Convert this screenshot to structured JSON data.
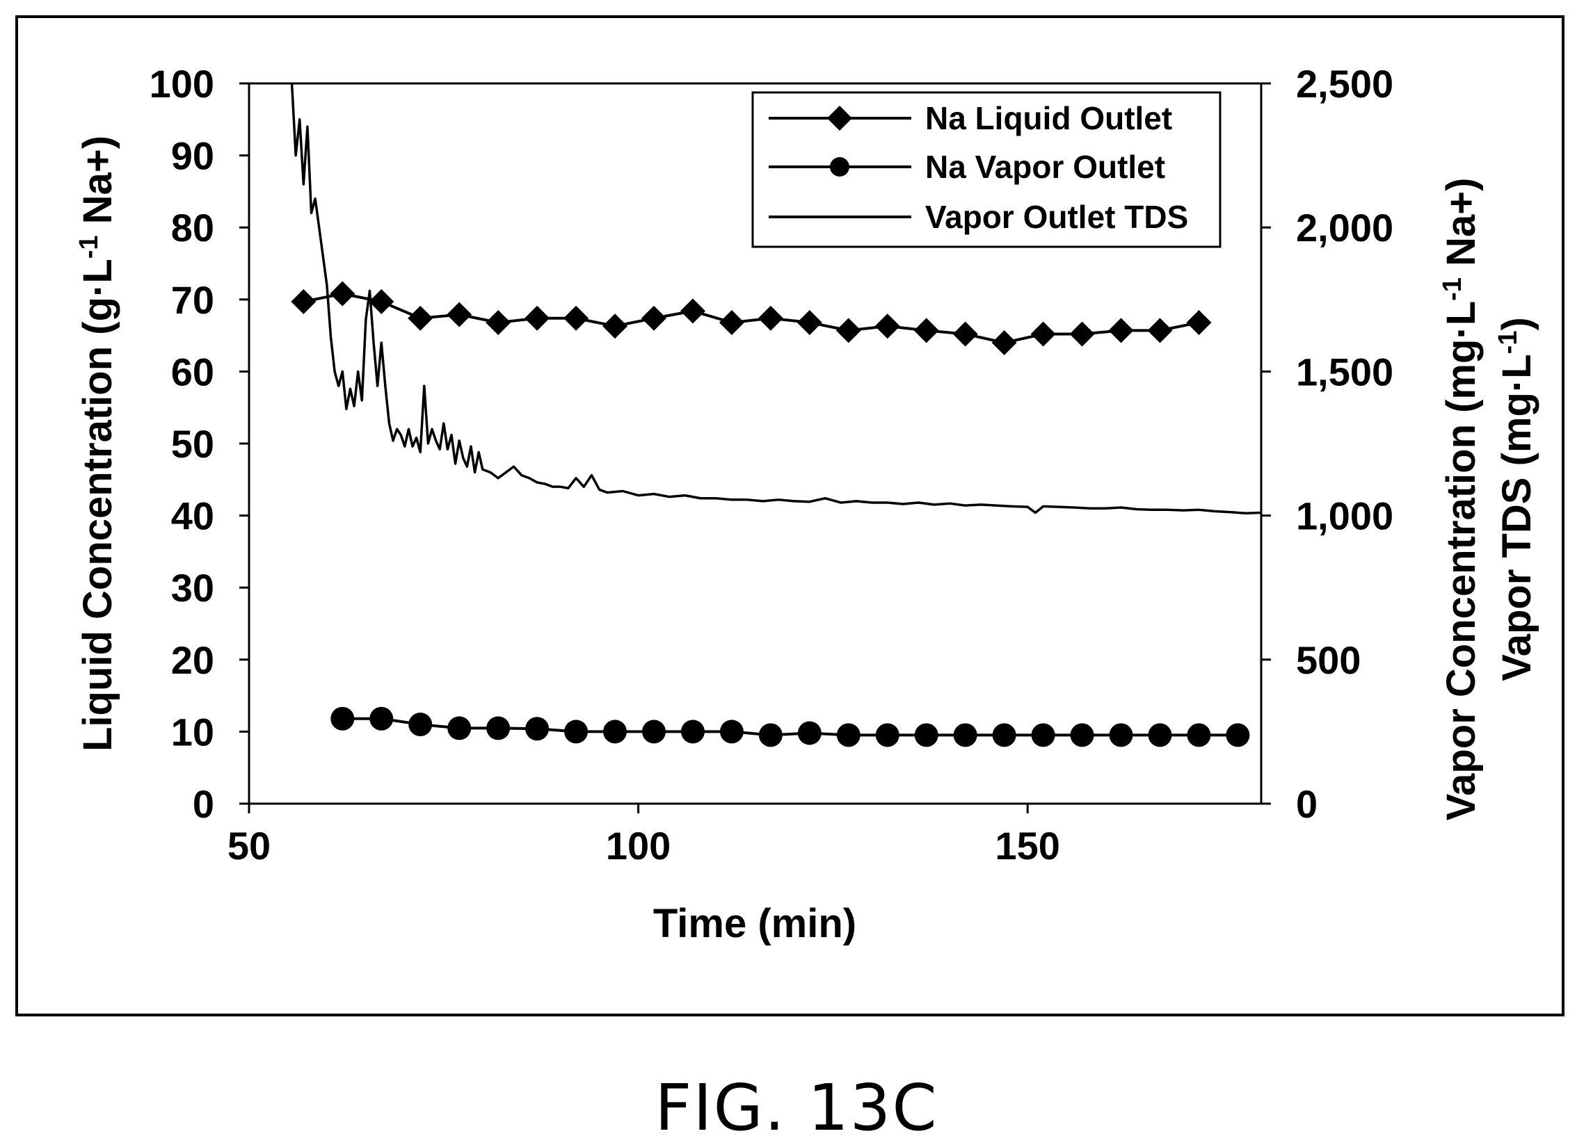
{
  "figure": {
    "caption": "FIG. 13C"
  },
  "chart_data": {
    "type": "line",
    "xlabel": "Time (min)",
    "ylabel_left": {
      "main": "Liquid Concentration (g·L",
      "sup": "-1",
      "tail": " Na+)"
    },
    "ylabel_right_1": {
      "main": "Vapor Concentration (mg·L",
      "sup": "-1",
      "tail": " Na+)"
    },
    "ylabel_right_2": {
      "main": "Vapor TDS (mg·L",
      "sup": "-1",
      "tail": ")"
    },
    "xlim": [
      50,
      180
    ],
    "ylim_left": [
      0,
      100
    ],
    "ylim_right": [
      0,
      2500
    ],
    "x_ticks": [
      50,
      100,
      150
    ],
    "x_tick_labels": [
      "50",
      "100",
      "150"
    ],
    "y_left_ticks": [
      0,
      10,
      20,
      30,
      40,
      50,
      60,
      70,
      80,
      90,
      100
    ],
    "y_left_tick_labels": [
      "0",
      "10",
      "20",
      "30",
      "40",
      "50",
      "60",
      "70",
      "80",
      "90",
      "100"
    ],
    "y_right_ticks": [
      0,
      500,
      1000,
      1500,
      2000,
      2500
    ],
    "y_right_tick_labels": [
      "0",
      "500",
      "1,000",
      "1,500",
      "2,000",
      "2,500"
    ],
    "grid": false,
    "legend": {
      "position": "top-right"
    },
    "series": [
      {
        "name": "Na Liquid Outlet",
        "axis": "left",
        "marker": "diamond",
        "x": [
          57,
          62,
          67,
          72,
          77,
          82,
          87,
          92,
          97,
          102,
          107,
          112,
          117,
          122,
          127,
          132,
          137,
          142,
          147,
          152,
          157,
          162,
          167,
          172
        ],
        "y": [
          69.7,
          70.8,
          69.7,
          67.4,
          67.9,
          66.8,
          67.4,
          67.4,
          66.3,
          67.4,
          68.4,
          66.8,
          67.4,
          66.8,
          65.7,
          66.3,
          65.7,
          65.2,
          64.0,
          65.2,
          65.2,
          65.7,
          65.7,
          66.8
        ]
      },
      {
        "name": "Na Vapor Outlet",
        "axis": "right",
        "marker": "circle",
        "x": [
          62,
          67,
          72,
          77,
          82,
          87,
          92,
          97,
          102,
          107,
          112,
          117,
          122,
          127,
          132,
          137,
          142,
          147,
          152,
          157,
          162,
          167,
          172,
          177
        ],
        "y": [
          295,
          295,
          275,
          262,
          262,
          260,
          250,
          250,
          250,
          250,
          250,
          238,
          245,
          238,
          238,
          238,
          238,
          238,
          238,
          238,
          238,
          238,
          238,
          238
        ]
      },
      {
        "name": "Vapor Outlet TDS",
        "axis": "right",
        "marker": "none",
        "x": [
          55.5,
          56,
          56.5,
          57,
          57.5,
          58,
          58.5,
          59,
          59.5,
          60,
          60.5,
          61,
          61.5,
          62,
          62.5,
          63,
          63.5,
          64,
          64.5,
          65,
          65.5,
          66,
          66.5,
          67,
          67.5,
          68,
          68.5,
          69,
          69.5,
          70,
          70.5,
          71,
          71.5,
          72,
          72.5,
          73,
          73.5,
          74,
          74.5,
          75,
          75.5,
          76,
          76.5,
          77,
          77.5,
          78,
          78.5,
          79,
          79.5,
          80,
          81,
          82,
          83,
          84,
          85,
          86,
          87,
          88,
          89,
          90,
          91,
          92,
          93,
          94,
          95,
          96,
          98,
          100,
          102,
          104,
          106,
          108,
          110,
          112,
          114,
          116,
          118,
          120,
          122,
          124,
          126,
          128,
          130,
          132,
          134,
          136,
          138,
          140,
          142,
          144,
          146,
          148,
          150,
          151,
          152,
          154,
          156,
          158,
          160,
          162,
          164,
          166,
          168,
          170,
          172,
          174,
          176,
          178,
          180
        ],
        "y": [
          2500,
          2250,
          2375,
          2150,
          2350,
          2050,
          2100,
          2000,
          1900,
          1800,
          1620,
          1500,
          1450,
          1500,
          1370,
          1440,
          1380,
          1500,
          1400,
          1680,
          1780,
          1600,
          1450,
          1600,
          1450,
          1320,
          1260,
          1300,
          1280,
          1240,
          1300,
          1240,
          1270,
          1220,
          1450,
          1250,
          1300,
          1260,
          1230,
          1320,
          1230,
          1280,
          1180,
          1260,
          1200,
          1170,
          1240,
          1150,
          1220,
          1160,
          1150,
          1130,
          1150,
          1170,
          1140,
          1130,
          1115,
          1110,
          1100,
          1100,
          1095,
          1130,
          1100,
          1140,
          1090,
          1080,
          1085,
          1070,
          1075,
          1065,
          1070,
          1060,
          1060,
          1055,
          1055,
          1050,
          1055,
          1050,
          1048,
          1060,
          1045,
          1050,
          1045,
          1045,
          1040,
          1045,
          1038,
          1042,
          1035,
          1038,
          1035,
          1032,
          1030,
          1010,
          1032,
          1030,
          1028,
          1025,
          1025,
          1028,
          1022,
          1020,
          1020,
          1018,
          1020,
          1015,
          1012,
          1008,
          1010
        ]
      }
    ]
  }
}
